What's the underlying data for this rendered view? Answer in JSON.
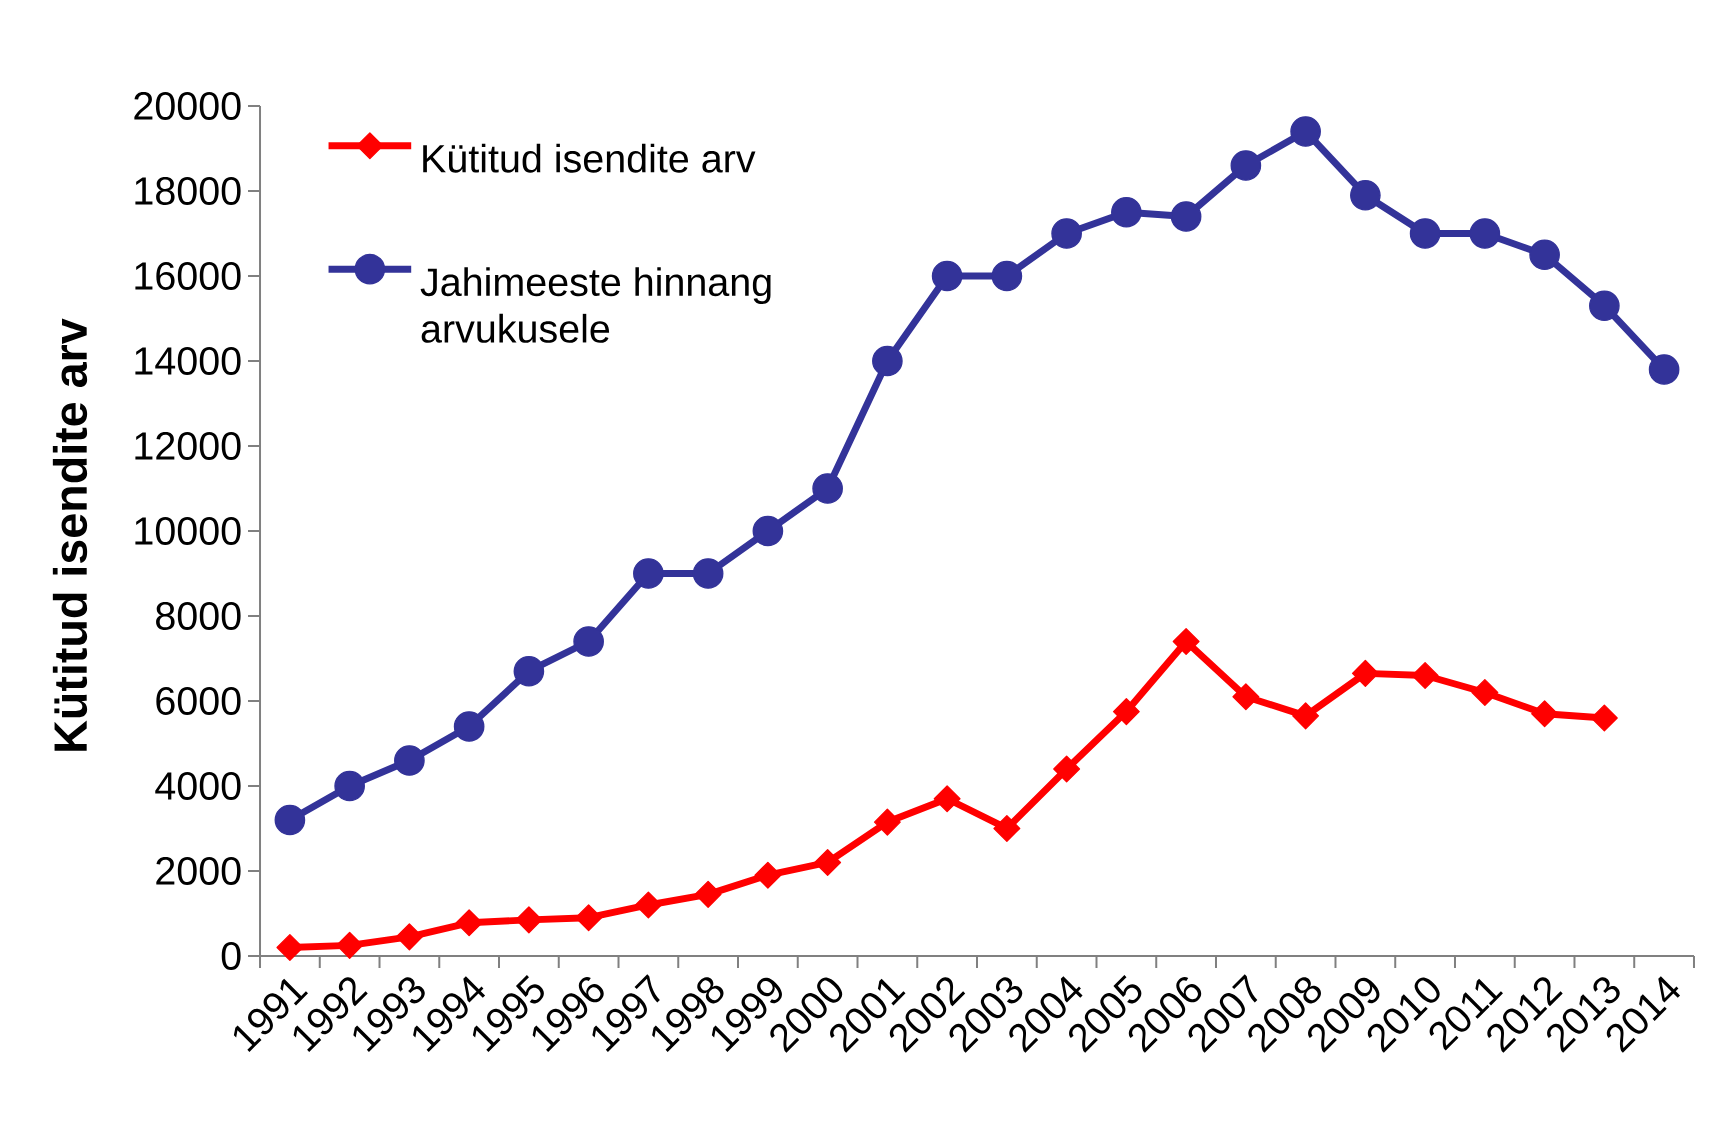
{
  "chart_data": {
    "type": "line",
    "ylabel": "Kütitud isendite arv",
    "categories": [
      "1991",
      "1992",
      "1993",
      "1994",
      "1995",
      "1996",
      "1997",
      "1998",
      "1999",
      "2000",
      "2001",
      "2002",
      "2003",
      "2004",
      "2005",
      "2006",
      "2007",
      "2008",
      "2009",
      "2010",
      "2011",
      "2012",
      "2013",
      "2014"
    ],
    "ylim": [
      0,
      20000
    ],
    "yticks": [
      0,
      2000,
      4000,
      6000,
      8000,
      10000,
      12000,
      14000,
      16000,
      18000,
      20000
    ],
    "legend": "top left",
    "line_style": "solid",
    "series": [
      {
        "name": "Kütitud isendite arv",
        "color": "#ff0000",
        "marker": "diamond",
        "values": [
          200,
          250,
          450,
          780,
          850,
          900,
          1200,
          1450,
          1900,
          2200,
          3150,
          3700,
          3000,
          4400,
          5750,
          7400,
          6100,
          5650,
          6650,
          6600,
          6200,
          5700,
          5600,
          null
        ]
      },
      {
        "name": "Jahimeeste hinnang arvukusele",
        "color": "#333399",
        "marker": "circle",
        "values": [
          3200,
          4000,
          4600,
          5400,
          6700,
          7400,
          9000,
          9000,
          10000,
          11000,
          14000,
          16000,
          16000,
          17000,
          17500,
          17400,
          18600,
          19400,
          17900,
          17000,
          17000,
          16500,
          15300,
          13800
        ]
      }
    ]
  }
}
